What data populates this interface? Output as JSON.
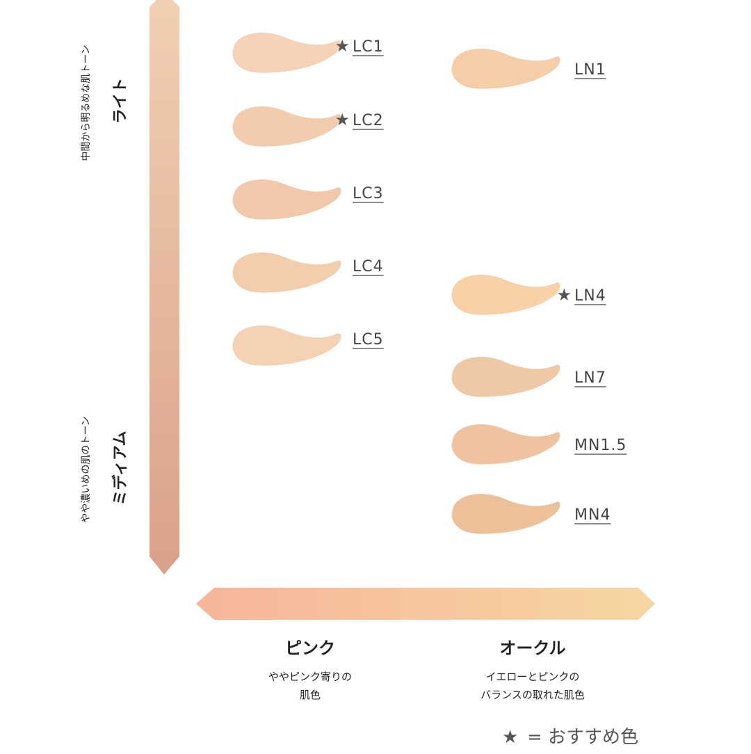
{
  "vertical_axis": {
    "top": {
      "caption": "中間から明るめな肌トーン",
      "label": "ライト"
    },
    "bottom": {
      "caption": "やや濃いめの肌のトーン",
      "label": "ミディアム"
    }
  },
  "horizontal_axis": {
    "left": {
      "label": "ピンク",
      "description": [
        "ややピンク寄りの",
        "肌色"
      ]
    },
    "right": {
      "label": "オークル",
      "description": [
        "イエローとピンクの",
        "バランスの取れた肌色"
      ]
    }
  },
  "shades": [
    {
      "label": "LC1",
      "recommended": true,
      "color": "#f6d3b8",
      "column": "left"
    },
    {
      "label": "LC2",
      "recommended": true,
      "color": "#f3ccae",
      "column": "left"
    },
    {
      "label": "LC3",
      "recommended": false,
      "color": "#f2c7aa",
      "column": "left"
    },
    {
      "label": "LC4",
      "recommended": false,
      "color": "#f4ceac",
      "column": "left"
    },
    {
      "label": "LC5",
      "recommended": false,
      "color": "#f6d2b4",
      "column": "left"
    },
    {
      "label": "LN1",
      "recommended": false,
      "color": "#f5cda6",
      "column": "right"
    },
    {
      "label": "LN4",
      "recommended": true,
      "color": "#f8d2a6",
      "column": "right"
    },
    {
      "label": "LN7",
      "recommended": false,
      "color": "#efc8a6",
      "column": "right"
    },
    {
      "label": "MN1.5",
      "recommended": false,
      "color": "#efc3a0",
      "column": "right"
    },
    {
      "label": "MN4",
      "recommended": false,
      "color": "#eec09a",
      "column": "right"
    }
  ],
  "legend": {
    "symbol": "★",
    "text": "= おすすめ色"
  }
}
